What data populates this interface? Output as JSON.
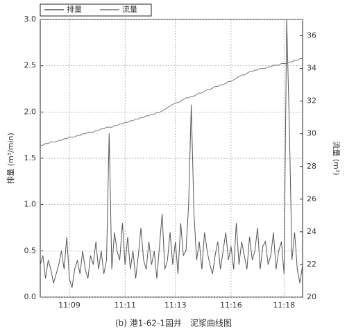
{
  "chart_data": {
    "type": "line",
    "caption": "(b) 港1-62-1固井　泥浆曲线图",
    "ylabel": "排量 (m³/min)",
    "y2label": "流量 (m³)",
    "categories": [
      null,
      null,
      null,
      null,
      null,
      null,
      null,
      null,
      null,
      null,
      null,
      "11:09",
      null,
      null,
      null,
      null,
      null,
      null,
      null,
      null,
      null,
      null,
      null,
      null,
      null,
      null,
      null,
      null,
      null,
      null,
      null,
      null,
      "11:11",
      null,
      null,
      null,
      null,
      null,
      null,
      null,
      null,
      null,
      null,
      null,
      null,
      null,
      null,
      null,
      null,
      null,
      null,
      "11:13",
      null,
      null,
      null,
      null,
      null,
      null,
      null,
      null,
      null,
      null,
      null,
      null,
      null,
      null,
      null,
      null,
      null,
      null,
      null,
      null,
      "11:16",
      null,
      null,
      null,
      null,
      null,
      null,
      null,
      null,
      null,
      null,
      null,
      null,
      null,
      null,
      null,
      null,
      null,
      null,
      null,
      "11:18",
      null,
      null,
      null,
      null,
      null,
      null,
      null
    ],
    "series": [
      {
        "name": "排量",
        "color": "#555555",
        "values": [
          0.35,
          0.45,
          0.2,
          0.4,
          0.3,
          0.15,
          0.25,
          0.35,
          0.5,
          0.3,
          0.65,
          0.2,
          0.1,
          0.3,
          0.4,
          0.25,
          0.5,
          0.3,
          0.2,
          0.45,
          0.35,
          0.6,
          0.3,
          0.5,
          0.25,
          0.4,
          1.77,
          0.3,
          0.7,
          0.5,
          0.4,
          0.8,
          0.35,
          0.65,
          0.3,
          0.5,
          0.2,
          0.45,
          0.75,
          0.4,
          0.3,
          0.6,
          0.35,
          0.5,
          0.2,
          0.55,
          0.9,
          0.3,
          0.4,
          0.7,
          0.35,
          0.6,
          0.25,
          0.8,
          0.45,
          0.5,
          1.0,
          2.08,
          0.9,
          0.4,
          0.6,
          0.3,
          0.7,
          0.5,
          0.35,
          0.25,
          0.45,
          0.6,
          0.3,
          0.5,
          0.7,
          0.4,
          0.55,
          0.3,
          0.8,
          0.35,
          0.6,
          0.45,
          0.3,
          0.65,
          0.4,
          0.5,
          0.75,
          0.3,
          0.55,
          0.6,
          0.35,
          0.45,
          0.7,
          0.3,
          0.5,
          0.6,
          0.25,
          3.0,
          1.85,
          0.4,
          0.7,
          0.3,
          0.15,
          0.35
        ]
      },
      {
        "name": "流量",
        "color": "#777777",
        "axis": "y2",
        "values": [
          29.3,
          29.3,
          29.4,
          29.4,
          29.5,
          29.5,
          29.5,
          29.6,
          29.6,
          29.7,
          29.7,
          29.8,
          29.8,
          29.8,
          29.9,
          29.9,
          30.0,
          30.0,
          30.1,
          30.1,
          30.1,
          30.2,
          30.2,
          30.3,
          30.3,
          30.4,
          30.4,
          30.4,
          30.5,
          30.5,
          30.6,
          30.6,
          30.7,
          30.7,
          30.8,
          30.8,
          30.9,
          30.9,
          31.0,
          31.0,
          31.1,
          31.1,
          31.2,
          31.2,
          31.3,
          31.3,
          31.4,
          31.5,
          31.6,
          31.7,
          31.8,
          31.9,
          31.9,
          32.0,
          32.1,
          32.2,
          32.2,
          32.3,
          32.3,
          32.4,
          32.5,
          32.5,
          32.6,
          32.7,
          32.7,
          32.8,
          32.9,
          32.9,
          33.0,
          33.0,
          33.1,
          33.2,
          33.2,
          33.3,
          33.4,
          33.5,
          33.6,
          33.6,
          33.7,
          33.8,
          33.8,
          33.9,
          33.9,
          34.0,
          34.0,
          34.0,
          34.1,
          34.1,
          34.2,
          34.2,
          34.2,
          34.3,
          34.3,
          34.3,
          34.4,
          34.4,
          34.5,
          34.5,
          34.6,
          34.6
        ]
      }
    ],
    "ylim": [
      0,
      3
    ],
    "yticks": [
      {
        "value": 0,
        "label": "0.0"
      },
      0.5,
      {
        "value": 1,
        "label": "1.0"
      },
      1.5,
      {
        "value": 2,
        "label": "2.0"
      },
      2.5,
      {
        "value": 3,
        "label": "3.0"
      }
    ],
    "y2lim": [
      20,
      37
    ],
    "y2ticks": [
      20,
      22,
      24,
      26,
      28,
      30,
      32,
      34,
      36
    ],
    "grid": true
  }
}
